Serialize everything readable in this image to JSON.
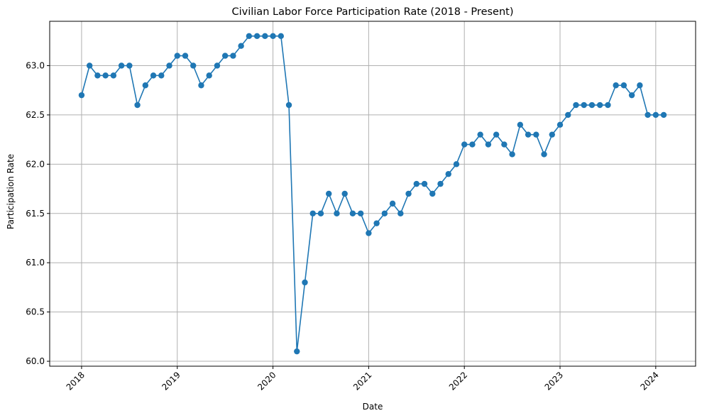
{
  "chart_data": {
    "type": "line",
    "title": "Civilian Labor Force Participation Rate (2018 - Present)",
    "xlabel": "Date",
    "ylabel": "Participation Rate",
    "x_start": "2018-01",
    "x_end": "2024-02",
    "xlim": [
      "2017-09",
      "2024-06"
    ],
    "ylim": [
      59.95,
      63.45
    ],
    "grid": true,
    "line_color": "#1f77b4",
    "marker": "circle",
    "x_ticks": [
      "2018",
      "2019",
      "2020",
      "2021",
      "2022",
      "2023",
      "2024"
    ],
    "y_ticks": [
      "60.0",
      "60.5",
      "61.0",
      "61.5",
      "62.0",
      "62.5",
      "63.0"
    ],
    "series": [
      {
        "values": [
          62.7,
          63.0,
          62.9,
          62.9,
          62.9,
          63.0,
          63.0,
          62.6,
          62.8,
          62.9,
          62.9,
          63.0,
          63.1,
          63.1,
          63.0,
          62.8,
          62.9,
          63.0,
          63.1,
          63.1,
          63.2,
          63.3,
          63.3,
          63.3,
          63.3,
          63.3,
          62.6,
          60.1,
          60.8,
          61.5,
          61.5,
          61.7,
          61.5,
          61.7,
          61.5,
          61.5,
          61.3,
          61.4,
          61.5,
          61.6,
          61.5,
          61.7,
          61.8,
          61.8,
          61.7,
          61.8,
          61.9,
          62.0,
          62.2,
          62.2,
          62.3,
          62.2,
          62.3,
          62.2,
          62.1,
          62.4,
          62.3,
          62.3,
          62.1,
          62.3,
          62.4,
          62.5,
          62.6,
          62.6,
          62.6,
          62.6,
          62.6,
          62.8,
          62.8,
          62.7,
          62.8,
          62.5,
          62.5,
          62.5
        ]
      }
    ]
  }
}
